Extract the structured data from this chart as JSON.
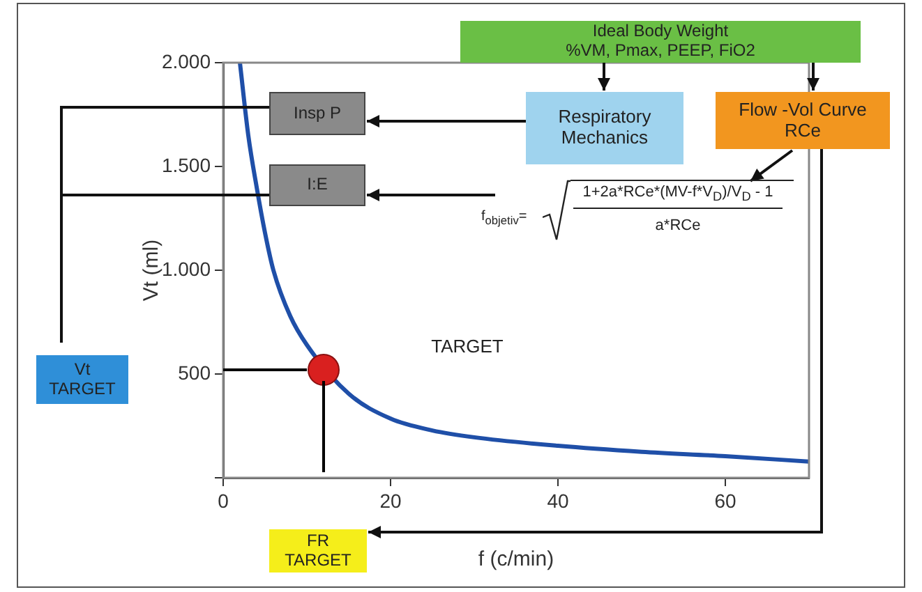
{
  "chart_data": {
    "type": "line",
    "xlabel": "f (c/min)",
    "ylabel": "Vt (ml)",
    "xlim": [
      0,
      70
    ],
    "xticks": [
      0,
      20,
      40,
      60
    ],
    "ylim": [
      0,
      2000
    ],
    "yticks": [
      {
        "value": 0,
        "label": null
      },
      {
        "value": 500,
        "label": "500"
      },
      {
        "value": 1000,
        "label": "1.000"
      },
      {
        "value": 1500,
        "label": "1.500"
      },
      {
        "value": 2000,
        "label": "2.000"
      }
    ],
    "series": [
      {
        "type": "line",
        "color": "#1f4fa8",
        "marker": "none",
        "x": [
          2,
          3,
          4,
          5,
          6,
          8,
          10,
          15,
          20,
          25,
          30,
          40,
          50,
          60,
          70
        ],
        "values": [
          2000,
          1650,
          1400,
          1180,
          1000,
          780,
          640,
          405,
          285,
          228,
          195,
          154,
          125,
          104,
          78
        ]
      },
      {
        "type": "scatter",
        "color": "#d9201f",
        "marker": "circle",
        "x": [
          12
        ],
        "values": [
          520
        ]
      }
    ],
    "ref_lines": [
      {
        "axis": "y",
        "value": 520,
        "color": "#000000"
      },
      {
        "axis": "x",
        "value": 12,
        "color": "#000000"
      }
    ],
    "annotations": [
      "TARGET",
      "Ideal Body Weight\n%VM, Pmax, PEEP, FiO2",
      "Respiratory Mechanics",
      "Flow -Vol Curve\nRCe",
      "Insp P",
      "I:E",
      "f$_{objetiv}$=",
      "1+2a*RCe*(MV-f*V$_{D}$)/V$_{D}$ - 1",
      "a*RCe",
      "Vt\nTARGET",
      "FR\nTARGET"
    ]
  }
}
